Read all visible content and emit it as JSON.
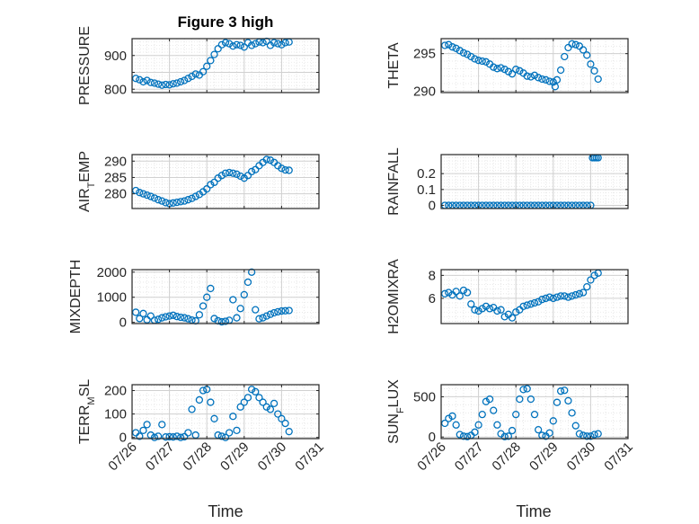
{
  "figure": {
    "title": "Figure 3 high",
    "marker_color": "#0072bd",
    "axes_color": "#262626",
    "grid_color": "#d0d0d0",
    "marker": "circle",
    "xlabel": "Time",
    "x_tick_labels": [
      "07/26",
      "07/27",
      "07/28",
      "07/29",
      "07/30",
      "07/31"
    ]
  },
  "chart_data": [
    {
      "type": "scatter",
      "title": "Figure 3 high",
      "ylabel": "PRESSURE",
      "xlim": [
        0,
        5
      ],
      "ylim": [
        790,
        950
      ],
      "yticks": [
        800,
        850,
        900
      ],
      "ytick_labels": [
        "800",
        "",
        "900"
      ],
      "grid": true,
      "x": [
        0.1,
        0.2,
        0.3,
        0.4,
        0.5,
        0.6,
        0.7,
        0.8,
        0.9,
        1.0,
        1.1,
        1.2,
        1.3,
        1.4,
        1.5,
        1.6,
        1.7,
        1.8,
        1.9,
        2.0,
        2.1,
        2.2,
        2.3,
        2.4,
        2.5,
        2.6,
        2.7,
        2.8,
        2.9,
        3.0,
        3.1,
        3.2,
        3.3,
        3.4,
        3.5,
        3.6,
        3.7,
        3.8,
        3.9,
        4.0,
        4.1,
        4.2
      ],
      "y": [
        832,
        828,
        822,
        826,
        820,
        818,
        815,
        812,
        814,
        813,
        816,
        818,
        822,
        826,
        832,
        838,
        845,
        842,
        852,
        868,
        885,
        903,
        920,
        932,
        938,
        935,
        928,
        932,
        930,
        925,
        938,
        930,
        935,
        940,
        938,
        942,
        930,
        938,
        935,
        932,
        938,
        940
      ]
    },
    {
      "type": "scatter",
      "ylabel": "THETA",
      "xlim": [
        0,
        5
      ],
      "ylim": [
        289.8,
        297
      ],
      "yticks": [
        290,
        295
      ],
      "ytick_labels": [
        "290",
        "295"
      ],
      "grid": true,
      "x": [
        0.1,
        0.2,
        0.3,
        0.4,
        0.5,
        0.6,
        0.7,
        0.8,
        0.9,
        1.0,
        1.1,
        1.2,
        1.3,
        1.4,
        1.5,
        1.6,
        1.7,
        1.8,
        1.9,
        2.0,
        2.1,
        2.2,
        2.3,
        2.4,
        2.5,
        2.6,
        2.7,
        2.8,
        2.9,
        3.0,
        3.05,
        3.1,
        3.2,
        3.3,
        3.4,
        3.5,
        3.6,
        3.7,
        3.8,
        3.9,
        4.0,
        4.1,
        4.2
      ],
      "y": [
        296.1,
        296.2,
        295.9,
        295.7,
        295.4,
        295.1,
        294.9,
        294.6,
        294.3,
        294.1,
        294.0,
        293.9,
        293.6,
        293.2,
        293.0,
        293.1,
        292.9,
        292.6,
        292.3,
        292.9,
        292.7,
        292.4,
        292.0,
        291.9,
        292.1,
        291.8,
        291.6,
        291.5,
        291.3,
        291.2,
        290.6,
        291.5,
        292.8,
        294.6,
        295.8,
        296.3,
        296.2,
        296.0,
        295.5,
        294.8,
        293.6,
        292.7,
        291.6
      ]
    },
    {
      "type": "scatter",
      "ylabel": "AIR_TEMP",
      "xlim": [
        0,
        5
      ],
      "ylim": [
        275.5,
        292
      ],
      "yticks": [
        280,
        285,
        290
      ],
      "ytick_labels": [
        "280",
        "285",
        "290"
      ],
      "grid": true,
      "x": [
        0.1,
        0.2,
        0.3,
        0.4,
        0.5,
        0.6,
        0.7,
        0.8,
        0.9,
        1.0,
        1.1,
        1.2,
        1.3,
        1.4,
        1.5,
        1.6,
        1.7,
        1.8,
        1.9,
        2.0,
        2.1,
        2.2,
        2.3,
        2.4,
        2.5,
        2.6,
        2.7,
        2.8,
        2.9,
        3.0,
        3.1,
        3.2,
        3.3,
        3.4,
        3.5,
        3.6,
        3.7,
        3.8,
        3.9,
        4.0,
        4.1,
        4.2
      ],
      "y": [
        281.0,
        280.4,
        280.0,
        279.6,
        279.2,
        278.7,
        278.2,
        277.8,
        277.3,
        277.0,
        277.2,
        277.4,
        277.6,
        277.8,
        278.2,
        278.6,
        279.2,
        279.8,
        280.6,
        281.5,
        282.8,
        283.5,
        284.8,
        285.6,
        286.3,
        286.5,
        286.3,
        286.0,
        285.4,
        284.8,
        285.6,
        286.8,
        287.4,
        288.6,
        289.6,
        290.5,
        290.3,
        289.6,
        288.6,
        287.8,
        287.3,
        287.2
      ]
    },
    {
      "type": "scatter",
      "ylabel": "RAINFALL",
      "xlim": [
        0,
        5
      ],
      "ylim": [
        -0.02,
        0.32
      ],
      "yticks": [
        0,
        0.1,
        0.2
      ],
      "ytick_labels": [
        "0",
        "0.1",
        "0.2"
      ],
      "grid": true,
      "x": [
        0.1,
        0.2,
        0.3,
        0.4,
        0.5,
        0.6,
        0.7,
        0.8,
        0.9,
        1.0,
        1.1,
        1.2,
        1.3,
        1.4,
        1.5,
        1.6,
        1.7,
        1.8,
        1.9,
        2.0,
        2.1,
        2.2,
        2.3,
        2.4,
        2.5,
        2.6,
        2.7,
        2.8,
        2.9,
        3.0,
        3.1,
        3.2,
        3.3,
        3.4,
        3.5,
        3.6,
        3.7,
        3.8,
        3.9,
        4.0,
        4.05,
        4.1,
        4.15,
        4.2
      ],
      "y": [
        0,
        0,
        0,
        0,
        0,
        0,
        0,
        0,
        0,
        0,
        0,
        0,
        0,
        0,
        0,
        0,
        0,
        0,
        0,
        0,
        0,
        0,
        0,
        0,
        0,
        0,
        0,
        0,
        0,
        0,
        0,
        0,
        0,
        0,
        0,
        0,
        0,
        0,
        0,
        0,
        0.3,
        0.3,
        0.3,
        0.3
      ]
    },
    {
      "type": "scatter",
      "ylabel": "MIXDEPTH",
      "xlim": [
        0,
        5
      ],
      "ylim": [
        -50,
        2100
      ],
      "yticks": [
        0,
        1000,
        2000
      ],
      "ytick_labels": [
        "0",
        "1000",
        "2000"
      ],
      "grid": true,
      "x": [
        0.1,
        0.2,
        0.3,
        0.4,
        0.5,
        0.6,
        0.7,
        0.8,
        0.9,
        1.0,
        1.1,
        1.2,
        1.3,
        1.4,
        1.5,
        1.6,
        1.7,
        1.8,
        1.9,
        2.0,
        2.1,
        2.2,
        2.3,
        2.4,
        2.5,
        2.6,
        2.7,
        2.8,
        2.9,
        3.0,
        3.1,
        3.2,
        3.3,
        3.4,
        3.5,
        3.6,
        3.7,
        3.8,
        3.9,
        4.0,
        4.1,
        4.2
      ],
      "y": [
        400,
        150,
        350,
        100,
        250,
        80,
        120,
        180,
        220,
        250,
        280,
        230,
        200,
        180,
        140,
        90,
        60,
        300,
        650,
        1000,
        1350,
        150,
        60,
        20,
        40,
        80,
        900,
        180,
        550,
        1100,
        1600,
        2000,
        500,
        140,
        180,
        250,
        320,
        380,
        420,
        450,
        460,
        470
      ]
    },
    {
      "type": "scatter",
      "ylabel": "H2OMIXRA",
      "xlim": [
        0,
        5
      ],
      "ylim": [
        3.8,
        8.5
      ],
      "yticks": [
        6,
        8
      ],
      "ytick_labels": [
        "6",
        "8"
      ],
      "grid": true,
      "x": [
        0.1,
        0.2,
        0.3,
        0.4,
        0.5,
        0.6,
        0.7,
        0.8,
        0.9,
        1.0,
        1.1,
        1.2,
        1.3,
        1.4,
        1.5,
        1.6,
        1.7,
        1.8,
        1.9,
        2.0,
        2.1,
        2.2,
        2.3,
        2.4,
        2.5,
        2.6,
        2.7,
        2.8,
        2.9,
        3.0,
        3.1,
        3.2,
        3.3,
        3.4,
        3.5,
        3.6,
        3.7,
        3.8,
        3.9,
        4.0,
        4.1,
        4.2
      ],
      "y": [
        6.4,
        6.5,
        6.3,
        6.6,
        6.2,
        6.7,
        6.5,
        5.5,
        5.0,
        4.9,
        5.1,
        5.3,
        5.1,
        5.2,
        4.9,
        5.0,
        4.4,
        4.6,
        4.3,
        4.8,
        5.0,
        5.3,
        5.4,
        5.5,
        5.6,
        5.7,
        5.9,
        6.0,
        6.1,
        6.0,
        6.1,
        6.2,
        6.2,
        6.1,
        6.2,
        6.3,
        6.4,
        6.5,
        7.0,
        7.6,
        8.0,
        8.2
      ]
    },
    {
      "type": "scatter",
      "ylabel": "TERR_MSL",
      "xlim": [
        0,
        5
      ],
      "ylim": [
        -5,
        225
      ],
      "yticks": [
        0,
        100,
        200
      ],
      "ytick_labels": [
        "0",
        "100",
        "200"
      ],
      "grid": true,
      "x": [
        0.1,
        0.2,
        0.3,
        0.4,
        0.5,
        0.6,
        0.7,
        0.8,
        0.9,
        1.0,
        1.1,
        1.2,
        1.3,
        1.4,
        1.5,
        1.6,
        1.7,
        1.8,
        1.9,
        2.0,
        2.1,
        2.2,
        2.3,
        2.4,
        2.5,
        2.6,
        2.7,
        2.8,
        2.9,
        3.0,
        3.1,
        3.2,
        3.3,
        3.4,
        3.5,
        3.6,
        3.7,
        3.8,
        3.9,
        4.0,
        4.1,
        4.2
      ],
      "y": [
        20,
        5,
        30,
        55,
        10,
        0,
        5,
        55,
        2,
        3,
        2,
        5,
        0,
        3,
        20,
        120,
        10,
        160,
        200,
        205,
        150,
        80,
        10,
        5,
        0,
        20,
        90,
        30,
        130,
        150,
        170,
        205,
        195,
        170,
        150,
        130,
        120,
        145,
        100,
        80,
        60,
        25
      ]
    },
    {
      "type": "scatter",
      "ylabel": "SUN_FLUX",
      "xlim": [
        0,
        5
      ],
      "ylim": [
        -20,
        650
      ],
      "yticks": [
        0,
        500
      ],
      "ytick_labels": [
        "0",
        "500"
      ],
      "grid": true,
      "x": [
        0.1,
        0.2,
        0.3,
        0.4,
        0.5,
        0.6,
        0.7,
        0.8,
        0.9,
        1.0,
        1.1,
        1.2,
        1.3,
        1.4,
        1.5,
        1.6,
        1.7,
        1.8,
        1.9,
        2.0,
        2.1,
        2.2,
        2.3,
        2.4,
        2.5,
        2.6,
        2.7,
        2.8,
        2.9,
        3.0,
        3.1,
        3.2,
        3.3,
        3.4,
        3.5,
        3.6,
        3.7,
        3.8,
        3.9,
        4.0,
        4.1,
        4.2
      ],
      "y": [
        170,
        230,
        260,
        150,
        30,
        10,
        5,
        20,
        60,
        150,
        280,
        440,
        470,
        330,
        150,
        40,
        5,
        10,
        80,
        280,
        470,
        590,
        600,
        470,
        280,
        90,
        20,
        10,
        50,
        200,
        430,
        570,
        580,
        450,
        300,
        140,
        40,
        20,
        10,
        10,
        30,
        40
      ]
    }
  ]
}
